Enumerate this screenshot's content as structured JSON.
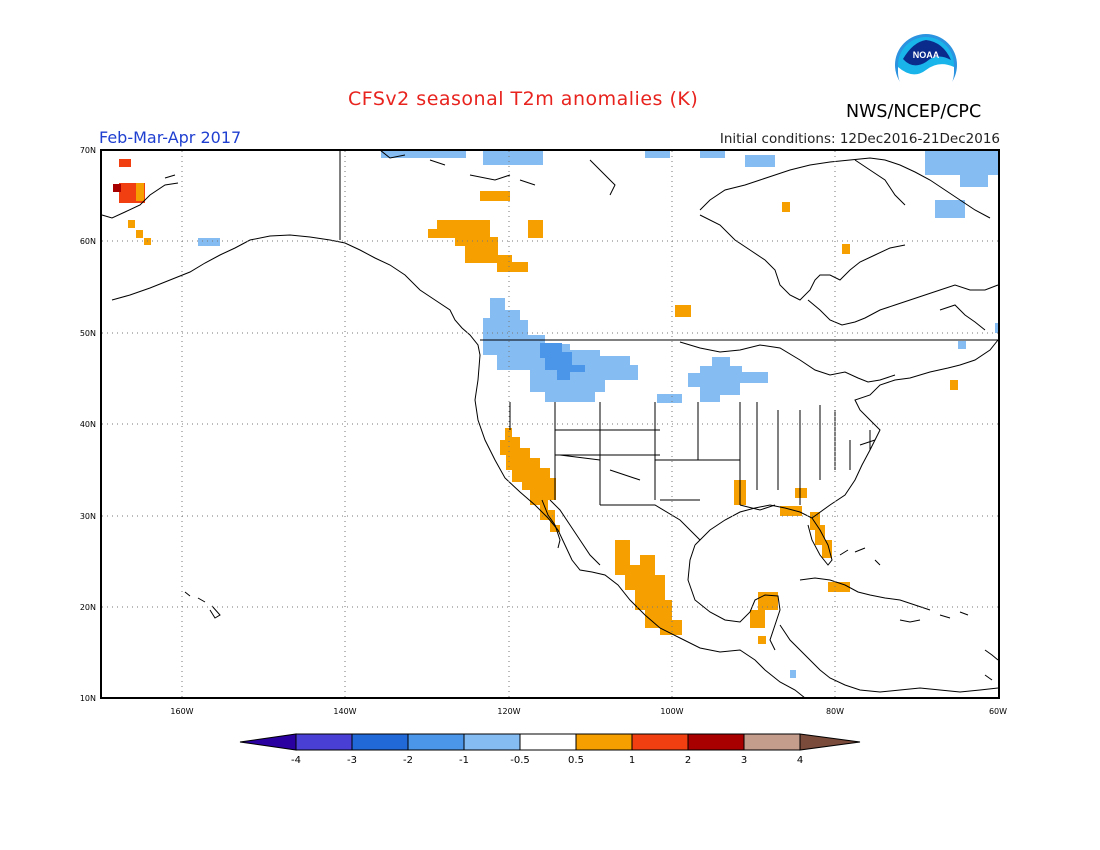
{
  "header": {
    "title": "CFSv2 seasonal T2m anomalies (K)",
    "period": "Feb-Mar-Apr 2017",
    "initial_conditions": "Initial conditions: 12Dec2016-21Dec2016",
    "organization": "NWS/NCEP/CPC",
    "logo_text": "NOAA"
  },
  "map": {
    "lat_ticks": [
      "70N",
      "60N",
      "50N",
      "40N",
      "30N",
      "20N",
      "10N"
    ],
    "lon_ticks": [
      "160W",
      "140W",
      "120W",
      "100W",
      "80W",
      "60W"
    ],
    "lat_range": [
      10,
      70
    ],
    "lon_range": [
      -170,
      -60
    ],
    "grid": "dotted"
  },
  "colorbar": {
    "labels": [
      "-4",
      "-3",
      "-2",
      "-1",
      "-0.5",
      "0.5",
      "1",
      "2",
      "3",
      "4"
    ],
    "colors": [
      "#2a00a0",
      "#4a3fd4",
      "#2169d6",
      "#4c96ea",
      "#85bdf3",
      "#ffffff",
      "#f5a000",
      "#f23f12",
      "#a80000",
      "#c49d8c",
      "#7a4a3a"
    ]
  },
  "anomaly_colors": {
    "light_blue": "#85bdf3",
    "medium_blue": "#4c96ea",
    "orange": "#f5a000",
    "red_orange": "#f23f12",
    "dark_red": "#a80000"
  }
}
